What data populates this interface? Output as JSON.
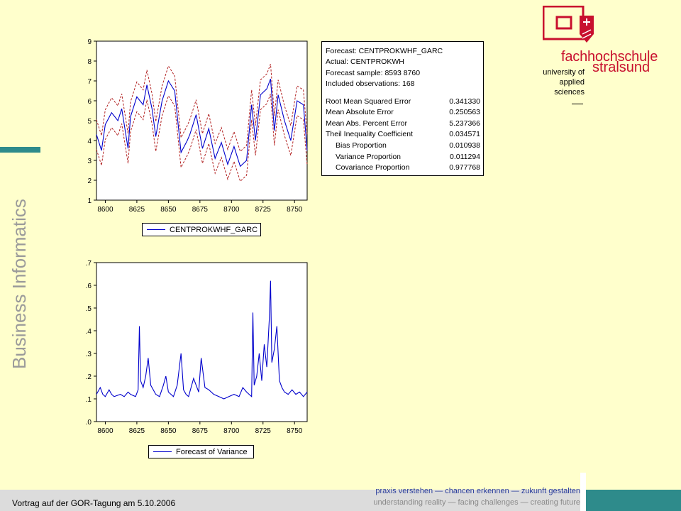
{
  "side_title": "Business Informatics",
  "footer": {
    "left": "Vortrag auf der GOR-Tagung  am 5.10.2006",
    "slogan_de": "praxis verstehen — chancen erkennen — zukunft gestalten",
    "slogan_en": "understanding reality — facing challenges — creating future"
  },
  "logo": {
    "name1": "fachhochschule",
    "name2": "stralsund",
    "line1": "university of",
    "line2": "applied",
    "line3": "sciences"
  },
  "colors": {
    "background": "#FFFFCC",
    "accent": "#2E8B8B",
    "brand_red": "#C8102E",
    "series_blue": "#0000CC",
    "band_red": "#B22222"
  },
  "stats_box": {
    "forecast": "Forecast:  CENTPROKWHF_GARC",
    "actual": "Actual:  CENTPROKWH",
    "sample": "Forecast sample:  8593 8760",
    "observations": "Included observations:  168",
    "rows": [
      {
        "label": "Root Mean Squared Error",
        "value": "0.341330"
      },
      {
        "label": "Mean Absolute Error",
        "value": "0.250563"
      },
      {
        "label": "Mean Abs. Percent Error",
        "value": "5.237366"
      },
      {
        "label": "Theil Inequality Coefficient",
        "value": "0.034571"
      },
      {
        "label": "Bias Proportion",
        "value": "0.010938"
      },
      {
        "label": "Variance Proportion",
        "value": "0.011294"
      },
      {
        "label": "Covariance Proportion",
        "value": "0.977768"
      }
    ]
  },
  "chart_data": [
    {
      "type": "line",
      "legend": "CENTPROKWHF_GARC",
      "xlim": [
        8593,
        8760
      ],
      "ylim": [
        1,
        9
      ],
      "xticks": [
        "8600",
        "8625",
        "8650",
        "8675",
        "8700",
        "8725",
        "8750"
      ],
      "yticks": [
        "1",
        "2",
        "3",
        "4",
        "5",
        "6",
        "7",
        "8",
        "9"
      ],
      "series": [
        {
          "name": "CENTPROKWHF_GARC",
          "x": [
            8593,
            8597,
            8600,
            8605,
            8610,
            8613,
            8618,
            8620,
            8625,
            8630,
            8633,
            8637,
            8640,
            8645,
            8650,
            8655,
            8660,
            8665,
            8667,
            8672,
            8677,
            8682,
            8687,
            8692,
            8697,
            8702,
            8707,
            8712,
            8716,
            8719,
            8723,
            8728,
            8731,
            8734,
            8737,
            8742,
            8747,
            8752,
            8757,
            8760
          ],
          "y": [
            4.3,
            3.5,
            4.8,
            5.4,
            5.0,
            5.6,
            3.6,
            5.2,
            6.2,
            5.8,
            6.8,
            5.6,
            4.2,
            6.0,
            7.0,
            6.5,
            3.4,
            4.0,
            4.3,
            5.3,
            3.6,
            4.6,
            3.1,
            3.9,
            2.8,
            3.7,
            2.7,
            3.0,
            5.8,
            4.0,
            6.3,
            6.6,
            7.1,
            4.5,
            6.3,
            5.0,
            4.0,
            6.0,
            5.8,
            3.5
          ]
        }
      ],
      "bands": "forecast ± 2 S.E. (red dashed)"
    },
    {
      "type": "line",
      "legend": "Forecast of Variance",
      "xlim": [
        8593,
        8760
      ],
      "ylim": [
        0,
        0.7
      ],
      "xticks": [
        "8600",
        "8625",
        "8650",
        "8675",
        "8700",
        "8725",
        "8750"
      ],
      "yticks": [
        ".0",
        ".1",
        ".2",
        ".3",
        ".4",
        ".5",
        ".6",
        ".7"
      ],
      "series": [
        {
          "name": "Forecast of Variance",
          "x": [
            8593,
            8596,
            8598,
            8600,
            8603,
            8605,
            8607,
            8612,
            8615,
            8618,
            8620,
            8624,
            8626,
            8627,
            8628,
            8630,
            8632,
            8634,
            8636,
            8640,
            8643,
            8646,
            8648,
            8650,
            8654,
            8657,
            8660,
            8662,
            8664,
            8666,
            8670,
            8674,
            8676,
            8679,
            8682,
            8686,
            8690,
            8694,
            8698,
            8702,
            8706,
            8709,
            8712,
            8714,
            8716,
            8717,
            8718,
            8720,
            8722,
            8724,
            8726,
            8728,
            8730,
            8731,
            8732,
            8734,
            8736,
            8738,
            8740,
            8742,
            8745,
            8748,
            8751,
            8754,
            8757,
            8760
          ],
          "y": [
            0.12,
            0.15,
            0.12,
            0.11,
            0.14,
            0.12,
            0.11,
            0.12,
            0.11,
            0.13,
            0.12,
            0.11,
            0.14,
            0.42,
            0.18,
            0.15,
            0.2,
            0.28,
            0.16,
            0.12,
            0.11,
            0.16,
            0.2,
            0.13,
            0.11,
            0.16,
            0.3,
            0.14,
            0.12,
            0.11,
            0.19,
            0.13,
            0.28,
            0.15,
            0.14,
            0.12,
            0.11,
            0.1,
            0.11,
            0.12,
            0.11,
            0.15,
            0.13,
            0.12,
            0.11,
            0.48,
            0.16,
            0.2,
            0.3,
            0.18,
            0.34,
            0.24,
            0.45,
            0.62,
            0.26,
            0.32,
            0.42,
            0.18,
            0.15,
            0.13,
            0.12,
            0.14,
            0.12,
            0.13,
            0.11,
            0.13
          ]
        }
      ]
    }
  ]
}
